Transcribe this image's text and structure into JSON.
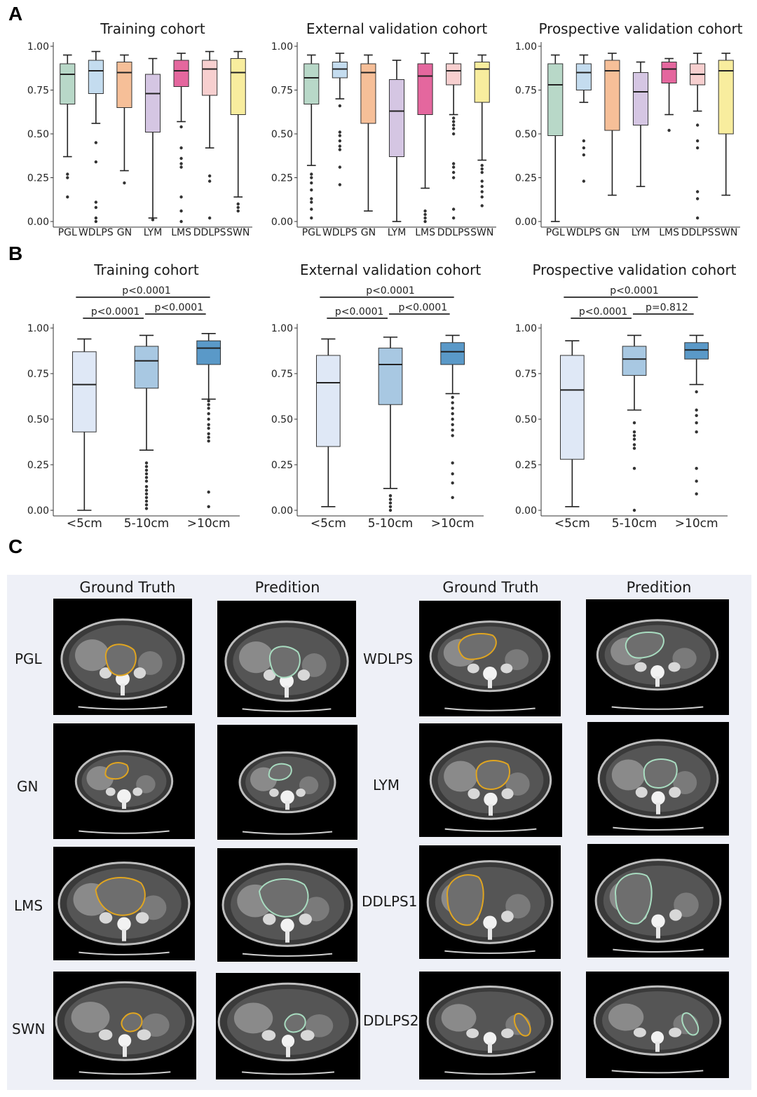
{
  "labels": {
    "a": "A",
    "b": "B",
    "c": "C"
  },
  "colors": {
    "PGL": "#b8d8c8",
    "WDLPS": "#c4dcef",
    "GN": "#f6bf98",
    "LYM": "#d5c6e3",
    "LMS": "#e4679e",
    "DDLPS": "#f7cfcf",
    "SWN": "#f8ed9e",
    "size_lt5": "#dfe8f6",
    "size_5_10": "#a8c8e2",
    "size_gt10": "#5a99c8",
    "gt_contour": "#e0a520",
    "pred_contour": "#a8dcc0"
  },
  "chart_data": [
    {
      "type": "box",
      "panel": "A",
      "title": "Training cohort",
      "ylim": [
        0,
        1
      ],
      "yticks": [
        "0.00",
        "0.25",
        "0.50",
        "0.75",
        "1.00"
      ],
      "categories": [
        "PGL",
        "WDLPS",
        "GN",
        "LYM",
        "LMS",
        "DDLPS",
        "SWN"
      ],
      "boxes": [
        {
          "whislo": 0.37,
          "q1": 0.67,
          "med": 0.84,
          "q3": 0.9,
          "whishi": 0.95,
          "fliers": [
            0.14,
            0.25,
            0.27
          ]
        },
        {
          "whislo": 0.56,
          "q1": 0.73,
          "med": 0.86,
          "q3": 0.92,
          "whishi": 0.97,
          "fliers": [
            0.0,
            0.02,
            0.08,
            0.11,
            0.34,
            0.45
          ]
        },
        {
          "whislo": 0.29,
          "q1": 0.65,
          "med": 0.85,
          "q3": 0.91,
          "whishi": 0.95,
          "fliers": [
            0.22
          ]
        },
        {
          "whislo": 0.02,
          "q1": 0.51,
          "med": 0.73,
          "q3": 0.84,
          "whishi": 0.93,
          "fliers": [
            0.01
          ]
        },
        {
          "whislo": 0.57,
          "q1": 0.77,
          "med": 0.86,
          "q3": 0.92,
          "whishi": 0.96,
          "fliers": [
            0.0,
            0.06,
            0.14,
            0.31,
            0.33,
            0.36,
            0.42,
            0.54
          ]
        },
        {
          "whislo": 0.42,
          "q1": 0.72,
          "med": 0.87,
          "q3": 0.92,
          "whishi": 0.97,
          "fliers": [
            0.02,
            0.23,
            0.26
          ]
        },
        {
          "whislo": 0.14,
          "q1": 0.61,
          "med": 0.85,
          "q3": 0.93,
          "whishi": 0.97,
          "fliers": [
            0.06,
            0.08,
            0.1
          ]
        }
      ]
    },
    {
      "type": "box",
      "panel": "A",
      "title": "External validation cohort",
      "ylim": [
        0,
        1
      ],
      "yticks": [
        "0.00",
        "0.25",
        "0.50",
        "0.75",
        "1.00"
      ],
      "categories": [
        "PGL",
        "WDLPS",
        "GN",
        "LYM",
        "LMS",
        "DDLPS",
        "SWN"
      ],
      "boxes": [
        {
          "whislo": 0.32,
          "q1": 0.67,
          "med": 0.82,
          "q3": 0.9,
          "whishi": 0.95,
          "fliers": [
            0.02,
            0.07,
            0.11,
            0.13,
            0.18,
            0.22,
            0.25,
            0.27
          ]
        },
        {
          "whislo": 0.7,
          "q1": 0.82,
          "med": 0.87,
          "q3": 0.91,
          "whishi": 0.96,
          "fliers": [
            0.21,
            0.31,
            0.41,
            0.43,
            0.46,
            0.49,
            0.51,
            0.66
          ]
        },
        {
          "whislo": 0.06,
          "q1": 0.56,
          "med": 0.85,
          "q3": 0.9,
          "whishi": 0.95,
          "fliers": []
        },
        {
          "whislo": 0.0,
          "q1": 0.37,
          "med": 0.63,
          "q3": 0.81,
          "whishi": 0.92,
          "fliers": []
        },
        {
          "whislo": 0.19,
          "q1": 0.61,
          "med": 0.83,
          "q3": 0.9,
          "whishi": 0.96,
          "fliers": [
            0.0,
            0.02,
            0.04,
            0.06
          ]
        },
        {
          "whislo": 0.61,
          "q1": 0.78,
          "med": 0.86,
          "q3": 0.9,
          "whishi": 0.96,
          "fliers": [
            0.02,
            0.07,
            0.25,
            0.28,
            0.31,
            0.33,
            0.5,
            0.53,
            0.55,
            0.57,
            0.59
          ]
        },
        {
          "whislo": 0.35,
          "q1": 0.68,
          "med": 0.87,
          "q3": 0.91,
          "whishi": 0.95,
          "fliers": [
            0.09,
            0.14,
            0.17,
            0.2,
            0.23,
            0.28,
            0.3,
            0.32
          ]
        }
      ]
    },
    {
      "type": "box",
      "panel": "A",
      "title": "Prospective validation cohort",
      "ylim": [
        0,
        1
      ],
      "yticks": [
        "0.00",
        "0.25",
        "0.50",
        "0.75",
        "1.00"
      ],
      "categories": [
        "PGL",
        "WDLPS",
        "GN",
        "LYM",
        "LMS",
        "DDLPS",
        "SWN"
      ],
      "boxes": [
        {
          "whislo": 0.0,
          "q1": 0.49,
          "med": 0.78,
          "q3": 0.9,
          "whishi": 0.95,
          "fliers": []
        },
        {
          "whislo": 0.68,
          "q1": 0.75,
          "med": 0.85,
          "q3": 0.9,
          "whishi": 0.95,
          "fliers": [
            0.23,
            0.38,
            0.42,
            0.46
          ]
        },
        {
          "whislo": 0.15,
          "q1": 0.52,
          "med": 0.86,
          "q3": 0.92,
          "whishi": 0.96,
          "fliers": []
        },
        {
          "whislo": 0.2,
          "q1": 0.55,
          "med": 0.74,
          "q3": 0.85,
          "whishi": 0.91,
          "fliers": []
        },
        {
          "whislo": 0.61,
          "q1": 0.79,
          "med": 0.87,
          "q3": 0.91,
          "whishi": 0.93,
          "fliers": [
            0.52
          ]
        },
        {
          "whislo": 0.63,
          "q1": 0.78,
          "med": 0.84,
          "q3": 0.9,
          "whishi": 0.96,
          "fliers": [
            0.02,
            0.13,
            0.17,
            0.42,
            0.46,
            0.55
          ]
        },
        {
          "whislo": 0.15,
          "q1": 0.5,
          "med": 0.86,
          "q3": 0.92,
          "whishi": 0.96,
          "fliers": []
        }
      ]
    },
    {
      "type": "box",
      "panel": "B",
      "title": "Training cohort",
      "ylim": [
        0,
        1
      ],
      "yticks": [
        "0.00",
        "0.25",
        "0.50",
        "0.75",
        "1.00"
      ],
      "categories": [
        "<5cm",
        "5-10cm",
        ">10cm"
      ],
      "boxes": [
        {
          "whislo": 0.0,
          "q1": 0.43,
          "med": 0.69,
          "q3": 0.87,
          "whishi": 0.94,
          "fliers": []
        },
        {
          "whislo": 0.33,
          "q1": 0.67,
          "med": 0.82,
          "q3": 0.9,
          "whishi": 0.96,
          "fliers": [
            0.01,
            0.03,
            0.05,
            0.07,
            0.09,
            0.11,
            0.13,
            0.16,
            0.18,
            0.2,
            0.22,
            0.24,
            0.26
          ]
        },
        {
          "whislo": 0.61,
          "q1": 0.8,
          "med": 0.89,
          "q3": 0.93,
          "whishi": 0.97,
          "fliers": [
            0.02,
            0.1,
            0.38,
            0.4,
            0.42,
            0.45,
            0.47,
            0.5,
            0.53,
            0.56,
            0.58,
            0.6
          ]
        }
      ],
      "comparisons": [
        {
          "from": 0,
          "to": 1,
          "label": "p<0.0001"
        },
        {
          "from": 1,
          "to": 2,
          "label": "p<0.0001"
        },
        {
          "from": 0,
          "to": 2,
          "label": "p<0.0001"
        }
      ]
    },
    {
      "type": "box",
      "panel": "B",
      "title": "External validation cohort",
      "ylim": [
        0,
        1
      ],
      "yticks": [
        "0.00",
        "0.25",
        "0.50",
        "0.75",
        "1.00"
      ],
      "categories": [
        "<5cm",
        "5-10cm",
        ">10cm"
      ],
      "boxes": [
        {
          "whislo": 0.02,
          "q1": 0.35,
          "med": 0.7,
          "q3": 0.85,
          "whishi": 0.94,
          "fliers": []
        },
        {
          "whislo": 0.12,
          "q1": 0.58,
          "med": 0.8,
          "q3": 0.89,
          "whishi": 0.95,
          "fliers": [
            0.0,
            0.02,
            0.04,
            0.06,
            0.08
          ]
        },
        {
          "whislo": 0.64,
          "q1": 0.8,
          "med": 0.87,
          "q3": 0.92,
          "whishi": 0.96,
          "fliers": [
            0.07,
            0.15,
            0.2,
            0.26,
            0.41,
            0.44,
            0.47,
            0.5,
            0.53,
            0.56,
            0.59,
            0.62
          ]
        }
      ],
      "comparisons": [
        {
          "from": 0,
          "to": 1,
          "label": "p<0.0001"
        },
        {
          "from": 1,
          "to": 2,
          "label": "p<0.0001"
        },
        {
          "from": 0,
          "to": 2,
          "label": "p<0.0001"
        }
      ]
    },
    {
      "type": "box",
      "panel": "B",
      "title": "Prospective validation cohort",
      "ylim": [
        0,
        1
      ],
      "yticks": [
        "0.00",
        "0.25",
        "0.50",
        "0.75",
        "1.00"
      ],
      "categories": [
        "<5cm",
        "5-10cm",
        ">10cm"
      ],
      "boxes": [
        {
          "whislo": 0.02,
          "q1": 0.28,
          "med": 0.66,
          "q3": 0.85,
          "whishi": 0.93,
          "fliers": []
        },
        {
          "whislo": 0.55,
          "q1": 0.74,
          "med": 0.83,
          "q3": 0.9,
          "whishi": 0.96,
          "fliers": [
            0.0,
            0.23,
            0.34,
            0.36,
            0.39,
            0.41,
            0.43,
            0.48
          ]
        },
        {
          "whislo": 0.69,
          "q1": 0.83,
          "med": 0.88,
          "q3": 0.92,
          "whishi": 0.96,
          "fliers": [
            0.09,
            0.16,
            0.23,
            0.43,
            0.48,
            0.52,
            0.55,
            0.65
          ]
        }
      ],
      "comparisons": [
        {
          "from": 0,
          "to": 1,
          "label": "p<0.0001"
        },
        {
          "from": 1,
          "to": 2,
          "label": "p=0.812"
        },
        {
          "from": 0,
          "to": 2,
          "label": "p<0.0001"
        }
      ]
    }
  ],
  "panel_c": {
    "headers": [
      "Ground Truth",
      "Predition",
      "Ground Truth",
      "Predition"
    ],
    "rows": [
      {
        "left": "PGL",
        "right": "WDLPS"
      },
      {
        "left": "GN",
        "right": "LYM"
      },
      {
        "left": "LMS",
        "right": "DDLPS1"
      },
      {
        "left": "SWN",
        "right": "DDLPS2"
      }
    ]
  }
}
